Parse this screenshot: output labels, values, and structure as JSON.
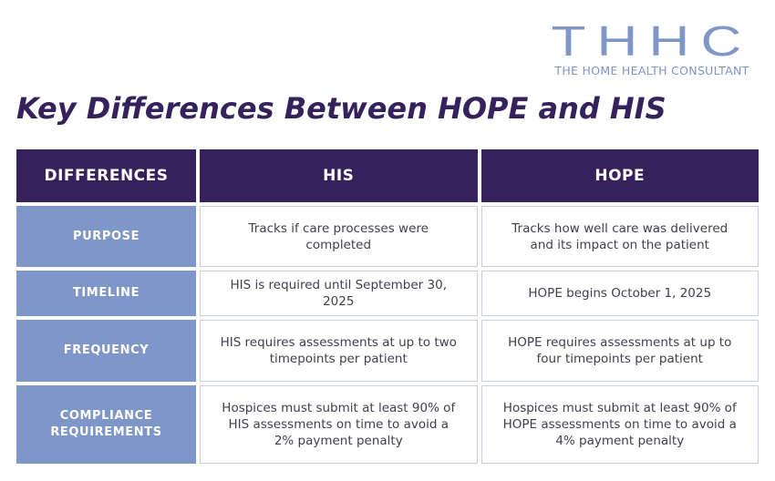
{
  "logo": {
    "mark": "THHC",
    "subtitle": "THE HOME HEALTH CONSULTANT"
  },
  "title": "Key Differences Between HOPE and HIS",
  "table": {
    "headers": [
      "DIFFERENCES",
      "HIS",
      "HOPE"
    ],
    "rows": [
      {
        "label": "PURPOSE",
        "his": "Tracks if care processes were completed",
        "hope": "Tracks how well care was delivered and its impact on the patient"
      },
      {
        "label": "TIMELINE",
        "his": "HIS is required until September 30, 2025",
        "hope": "HOPE begins October 1, 2025"
      },
      {
        "label": "FREQUENCY",
        "his": "HIS requires assessments at up to two timepoints per patient",
        "hope": "HOPE requires assessments at up to four timepoints per patient"
      },
      {
        "label": "COMPLIANCE REQUIREMENTS",
        "his": "Hospices must submit at least 90% of HIS assessments on time to avoid a 2% payment penalty",
        "hope": "Hospices must submit at least 90% of HOPE assessments on time to avoid a 4% payment penalty"
      }
    ]
  },
  "colors": {
    "header_bg": "#35215c",
    "row_label_bg": "#7e96c8",
    "title": "#35215c",
    "logo": "#8096c6"
  }
}
